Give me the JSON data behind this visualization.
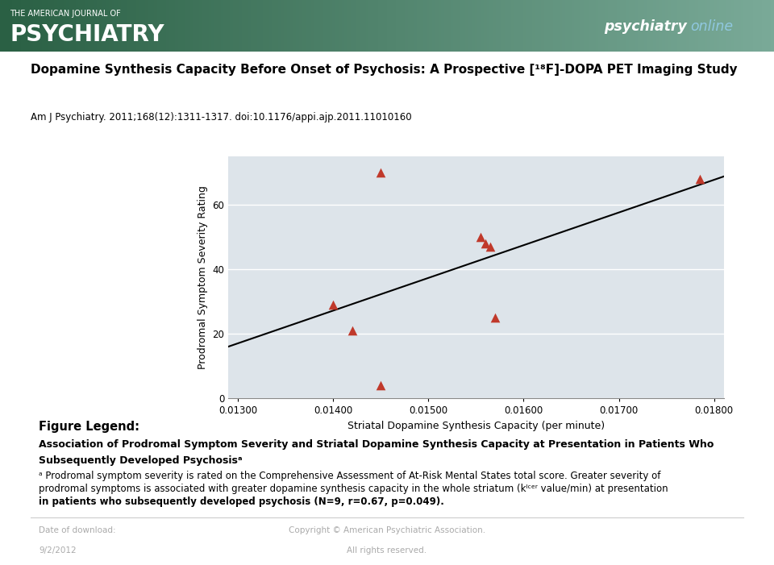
{
  "scatter_x": [
    0.0145,
    0.0145,
    0.014,
    0.0142,
    0.0156,
    0.01555,
    0.01565,
    0.0157,
    0.01785
  ],
  "scatter_y": [
    70.0,
    4.0,
    29.0,
    21.0,
    48.0,
    50.0,
    47.0,
    25.0,
    68.0
  ],
  "marker_color": "#c0392b",
  "marker_size": 70,
  "xlabel": "Striatal Dopamine Synthesis Capacity (per minute)",
  "ylabel": "Prodromal Symptom Severity Rating",
  "xlim": [
    0.0129,
    0.0181
  ],
  "ylim": [
    0,
    75
  ],
  "xticks": [
    0.013,
    0.014,
    0.015,
    0.016,
    0.017,
    0.018
  ],
  "yticks": [
    0,
    20,
    40,
    60
  ],
  "plot_bg_color": "#dde4ea",
  "header_bg_color_left": "#2d6b4a",
  "header_bg_color_right": "#8aaba0",
  "psychiatry_bg_color": "#1a5fa8",
  "title_area_bg": "#d9e8f0",
  "header_top_text": "THE AMERICAN JOURNAL OF",
  "header_main_text": "PSYCHIATRY",
  "article_title": "Dopamine Synthesis Capacity Before Onset of Psychosis: A Prospective [¹⁸F]-DOPA PET Imaging Study",
  "citation": "Am J Psychiatry. 2011;168(12):1311-1317. doi:10.1176/appi.ajp.2011.11010160",
  "legend_title": "Figure Legend:",
  "legend_line1": "Association of Prodromal Symptom Severity and Striatal Dopamine Synthesis Capacity at Presentation in Patients Who",
  "legend_line2": "Subsequently Developed Psychosisᵃ",
  "legend_note1": "ᵃ Prodromal symptom severity is rated on the Comprehensive Assessment of At-Risk Mental States total score. Greater severity of",
  "legend_note2": "prodromal symptoms is associated with greater dopamine synthesis capacity in the whole striatum (kᴵᶜᵉʳ value/min) at presentation",
  "legend_note3": "in patients who subsequently developed psychosis (N=9, r=0.67, p=0.049).",
  "footer_left1": "Date of download:",
  "footer_left2": "9/2/2012",
  "footer_center1": "Copyright © American Psychiatric Association.",
  "footer_center2": "All rights reserved."
}
